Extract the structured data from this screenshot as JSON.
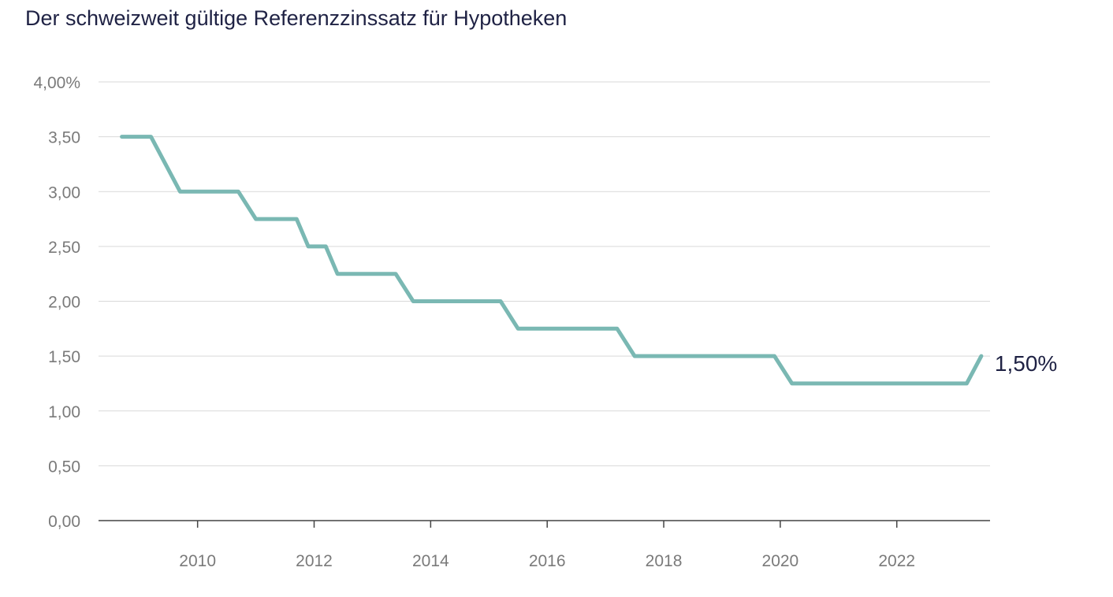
{
  "chart_data": {
    "type": "line",
    "title": "Der schweizweit gültige Referenzzinssatz für Hypotheken",
    "xlabel": "",
    "ylabel": "",
    "x_ticks": [
      "2010",
      "2012",
      "2014",
      "2016",
      "2018",
      "2020",
      "2022"
    ],
    "x_tick_values": [
      2010,
      2012,
      2014,
      2016,
      2018,
      2020,
      2022
    ],
    "xlim": [
      2008.3,
      2023.6
    ],
    "y_ticks": [
      "0,00",
      "0,50",
      "1,00",
      "1,50",
      "2,00",
      "2,50",
      "3,00",
      "3,50",
      "4,00%"
    ],
    "y_tick_values": [
      0,
      0.5,
      1,
      1.5,
      2,
      2.5,
      3,
      3.5,
      4
    ],
    "ylim": [
      0,
      4
    ],
    "grid": true,
    "line_color": "#7ab8b3",
    "series": [
      {
        "x": [
          2008.7,
          2009.2,
          2009.7,
          2010.7,
          2011.0,
          2011.7,
          2011.9,
          2012.2,
          2012.4,
          2013.4,
          2013.7,
          2015.2,
          2015.5,
          2017.2,
          2017.5,
          2019.9,
          2020.2,
          2023.2,
          2023.45
        ],
        "y": [
          3.5,
          3.5,
          3.0,
          3.0,
          2.75,
          2.75,
          2.5,
          2.5,
          2.25,
          2.25,
          2.0,
          2.0,
          1.75,
          1.75,
          1.5,
          1.5,
          1.25,
          1.25,
          1.5
        ]
      }
    ],
    "annotations": [
      {
        "text": "1,50%",
        "x": 2023.45,
        "y": 1.5
      }
    ]
  }
}
